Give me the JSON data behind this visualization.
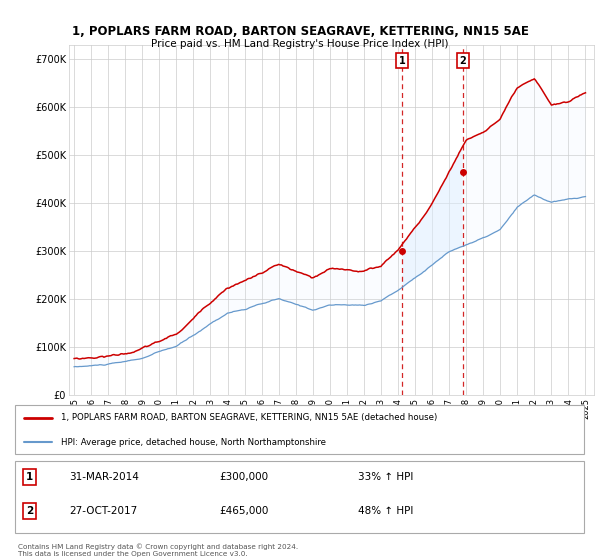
{
  "title": "1, POPLARS FARM ROAD, BARTON SEAGRAVE, KETTERING, NN15 5AE",
  "subtitle": "Price paid vs. HM Land Registry's House Price Index (HPI)",
  "ylabel_ticks": [
    "£0",
    "£100K",
    "£200K",
    "£300K",
    "£400K",
    "£500K",
    "£600K",
    "£700K"
  ],
  "ytick_values": [
    0,
    100000,
    200000,
    300000,
    400000,
    500000,
    600000,
    700000
  ],
  "ylim": [
    0,
    730000
  ],
  "legend_line1": "1, POPLARS FARM ROAD, BARTON SEAGRAVE, KETTERING, NN15 5AE (detached house)",
  "legend_line2": "HPI: Average price, detached house, North Northamptonshire",
  "sale1_date": "31-MAR-2014",
  "sale1_price": "£300,000",
  "sale1_hpi": "33% ↑ HPI",
  "sale1_year": 2014.25,
  "sale1_value": 300000,
  "sale2_date": "27-OCT-2017",
  "sale2_price": "£465,000",
  "sale2_hpi": "48% ↑ HPI",
  "sale2_year": 2017.82,
  "sale2_value": 465000,
  "footer": "Contains HM Land Registry data © Crown copyright and database right 2024.\nThis data is licensed under the Open Government Licence v3.0.",
  "red_color": "#cc0000",
  "blue_color": "#6699cc",
  "shading_color": "#ddeeff",
  "grid_color": "#cccccc",
  "xlim_left": 1994.7,
  "xlim_right": 2025.5
}
